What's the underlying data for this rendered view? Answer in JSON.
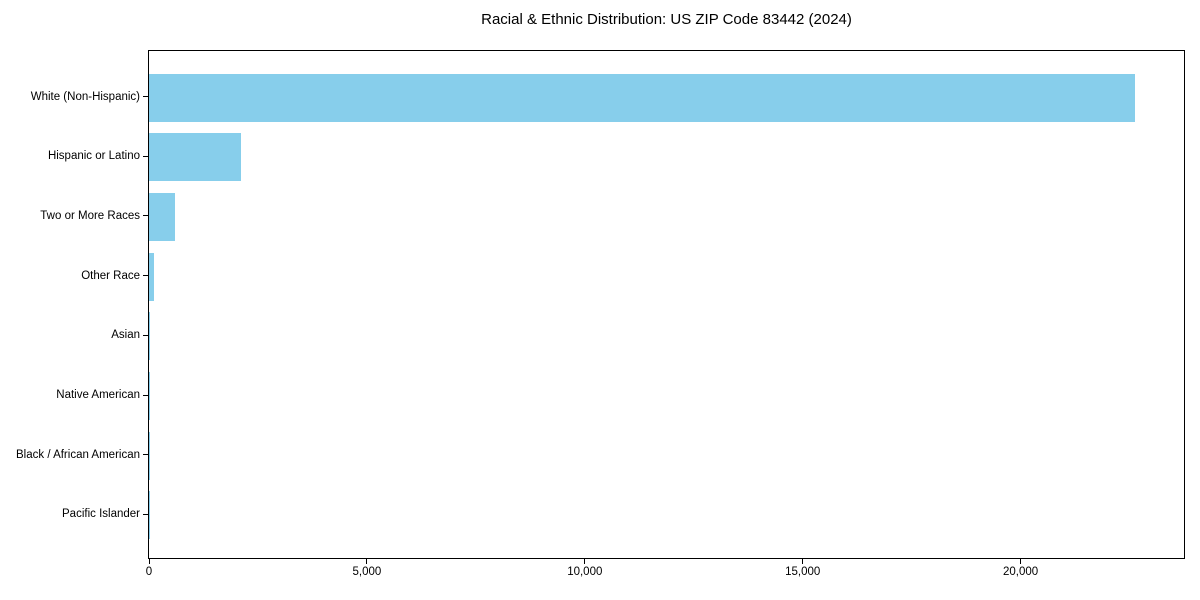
{
  "title": "Racial & Ethnic Distribution: US ZIP Code 83442 (2024)",
  "chart_data": {
    "type": "bar",
    "orientation": "horizontal",
    "title": "Racial & Ethnic Distribution: US ZIP Code 83442 (2024)",
    "categories": [
      "White (Non-Hispanic)",
      "Hispanic or Latino",
      "Two or More Races",
      "Other Race",
      "Asian",
      "Native American",
      "Black / African American",
      "Pacific Islander"
    ],
    "values": [
      22620,
      2100,
      600,
      125,
      30,
      25,
      10,
      5
    ],
    "xlabel": "",
    "ylabel": "",
    "xlim": [
      0,
      23750
    ],
    "xticks": [
      0,
      5000,
      10000,
      15000,
      20000
    ],
    "xtick_labels": [
      "0",
      "5,000",
      "10,000",
      "15,000",
      "20,000"
    ],
    "bar_color": "#87CEEB",
    "background_color": "#FFFFFF",
    "text_color": "#000000",
    "grid": false,
    "legend": null,
    "sort_order": "descending"
  }
}
